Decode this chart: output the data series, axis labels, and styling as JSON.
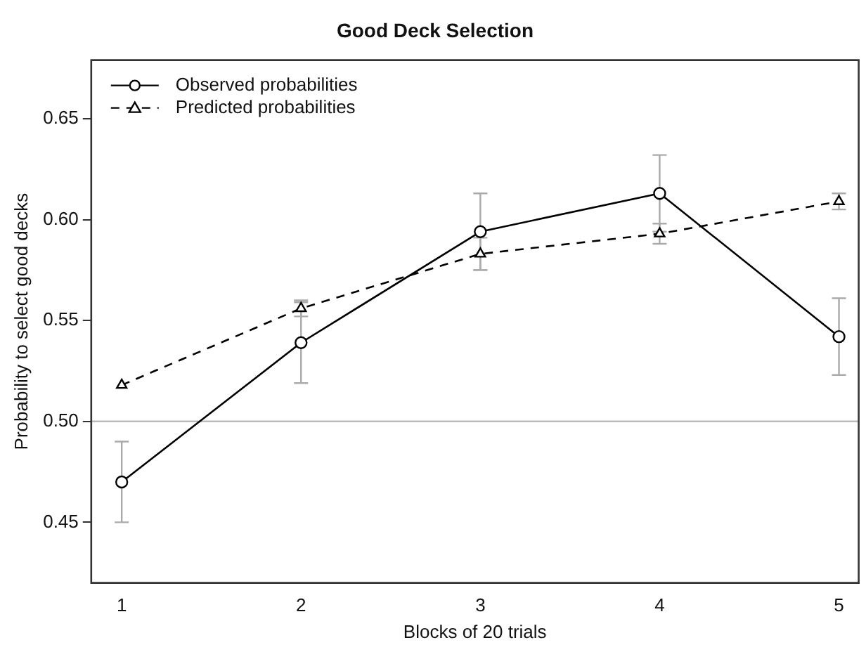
{
  "chart_data": {
    "type": "line",
    "title": "Good Deck Selection",
    "xlabel": "Blocks of 20 trials",
    "ylabel": "Probability to select good decks",
    "x": [
      1,
      2,
      3,
      4,
      5
    ],
    "xlim": [
      0.83,
      5.11
    ],
    "xticks": [
      1,
      2,
      3,
      4,
      5
    ],
    "ylim": [
      0.42,
      0.679
    ],
    "yticks": [
      0.45,
      {
        "value": 0.5,
        "label": "0.50"
      },
      0.55,
      {
        "value": 0.6,
        "label": "0.60"
      },
      0.65
    ],
    "series": [
      {
        "name": "Observed probabilities",
        "color": "#000000",
        "marker": "circle",
        "line_style": "solid",
        "values": [
          0.47,
          0.539,
          0.594,
          0.613,
          0.542
        ],
        "errors": [
          0.02,
          0.02,
          0.019,
          0.019,
          0.019
        ]
      },
      {
        "name": "Predicted probabilities",
        "color": "#000000",
        "marker": "triangle",
        "line_style": "dashed",
        "values": [
          0.518,
          0.556,
          0.583,
          0.593,
          0.609
        ],
        "errors": [
          null,
          0.004,
          0.008,
          0.005,
          0.004
        ]
      }
    ],
    "ref_lines": [
      {
        "axis": "y",
        "value": 0.5,
        "color": "#bbbbbb"
      }
    ],
    "legend": "top left",
    "grid": false
  }
}
